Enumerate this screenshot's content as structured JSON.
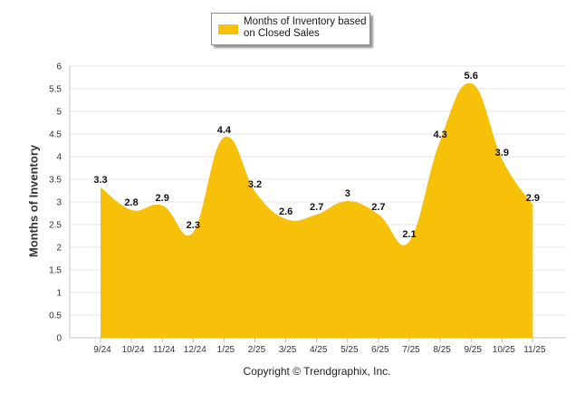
{
  "chart_data": {
    "type": "area",
    "categories": [
      "9/24",
      "10/24",
      "11/24",
      "12/24",
      "1/25",
      "2/25",
      "3/25",
      "4/25",
      "5/25",
      "6/25",
      "7/25",
      "8/25",
      "9/25",
      "10/25",
      "11/25"
    ],
    "series": [
      {
        "name": "Months of Inventory based on Closed Sales",
        "values": [
          3.3,
          2.8,
          2.9,
          2.3,
          4.4,
          3.2,
          2.6,
          2.7,
          3,
          2.7,
          2.1,
          4.3,
          5.6,
          3.9,
          2.9
        ]
      }
    ],
    "ylabel": "Months of Inventory",
    "xlabel": "",
    "ylim": [
      0,
      6
    ],
    "yticks": [
      "0",
      "0.5",
      "1",
      "1.5",
      "2",
      "2.5",
      "3",
      "3.5",
      "4",
      "4.5",
      "5",
      "5.5",
      "6"
    ],
    "grid": true,
    "legend_position": "top-center",
    "data_labels": [
      "3.3",
      "2.8",
      "2.9",
      "2.3",
      "4.4",
      "3.2",
      "2.6",
      "2.7",
      "3",
      "2.7",
      "2.1",
      "4.3",
      "5.6",
      "3.9",
      "2.9"
    ],
    "fill_color": "#f7c10a"
  },
  "legend": {
    "line1": "Months of Inventory based",
    "line2": "on Closed Sales"
  },
  "footer": "Copyright © Trendgraphix, Inc."
}
